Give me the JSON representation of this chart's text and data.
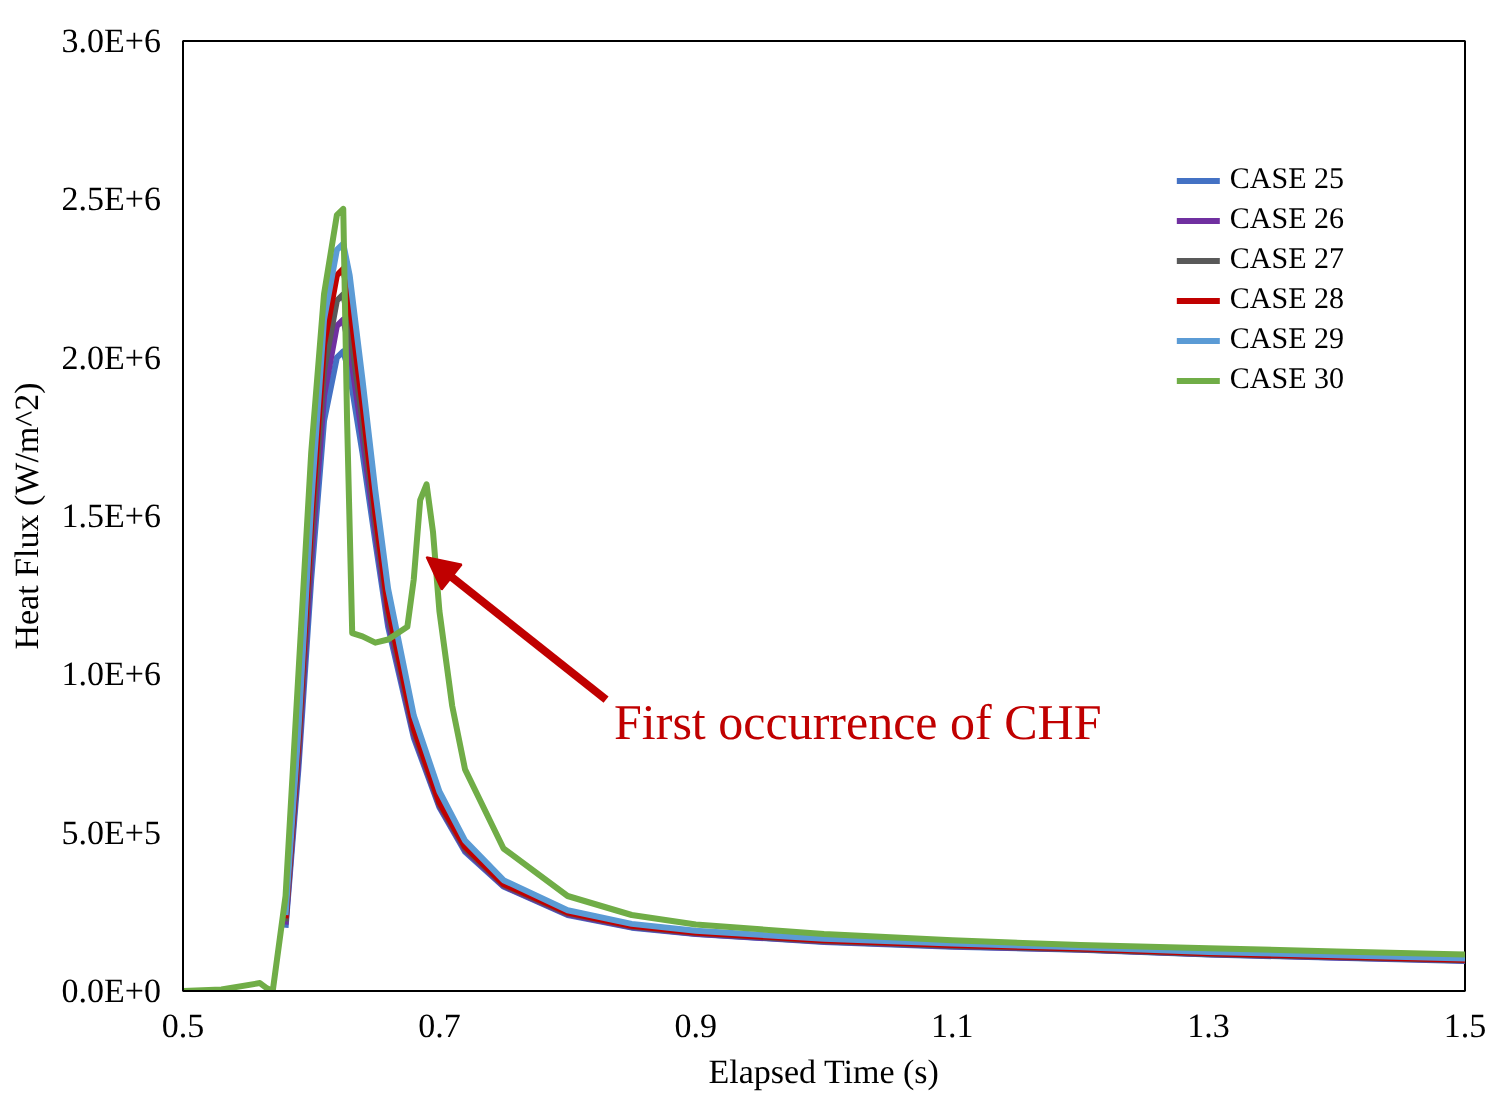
{
  "chart_data": {
    "type": "line",
    "xlabel": "Elapsed Time (s)",
    "ylabel": "Heat Flux (W/m^2)",
    "xlim": [
      0.5,
      1.5
    ],
    "xticks": [
      0.5,
      0.7,
      0.9,
      1.1,
      1.3,
      1.5
    ],
    "ylim": [
      0,
      3000000
    ],
    "yticks": [
      {
        "value": 0,
        "label": "0.0E+0"
      },
      {
        "value": 500000,
        "label": "5.0E+5"
      },
      {
        "value": 1000000,
        "label": "1.0E+6"
      },
      {
        "value": 1500000,
        "label": "1.5E+6"
      },
      {
        "value": 2000000,
        "label": "2.0E+6"
      },
      {
        "value": 2500000,
        "label": "2.5E+6"
      },
      {
        "value": 3000000,
        "label": "3.0E+6"
      }
    ],
    "grid": false,
    "legend": "top right",
    "marker": "none",
    "line_style": "solid",
    "series": [
      {
        "name": "CASE 25",
        "color": "#4472c4",
        "x": [
          0.58,
          0.59,
          0.6,
          0.61,
          0.62,
          0.625,
          0.63,
          0.64,
          0.65,
          0.66,
          0.68,
          0.7,
          0.72,
          0.75,
          0.8,
          0.85,
          0.9,
          1.0,
          1.1,
          1.2,
          1.3,
          1.4,
          1.5
        ],
        "values": [
          200000,
          700000,
          1300000,
          1800000,
          2000000,
          2020000,
          1950000,
          1700000,
          1420000,
          1150000,
          800000,
          580000,
          440000,
          330000,
          240000,
          200000,
          180000,
          155000,
          140000,
          130000,
          115000,
          105000,
          95000
        ]
      },
      {
        "name": "CASE 26",
        "color": "#7030a0",
        "x": [
          0.58,
          0.59,
          0.6,
          0.61,
          0.62,
          0.625,
          0.63,
          0.64,
          0.65,
          0.66,
          0.68,
          0.7,
          0.72,
          0.75,
          0.8,
          0.85,
          0.9,
          1.0,
          1.1,
          1.2,
          1.3,
          1.4,
          1.5
        ],
        "values": [
          210000,
          730000,
          1360000,
          1880000,
          2100000,
          2120000,
          2030000,
          1750000,
          1450000,
          1170000,
          810000,
          585000,
          445000,
          332000,
          242000,
          202000,
          181000,
          156000,
          141000,
          131000,
          116000,
          106000,
          96000
        ]
      },
      {
        "name": "CASE 27",
        "color": "#595959",
        "x": [
          0.58,
          0.59,
          0.6,
          0.61,
          0.62,
          0.625,
          0.63,
          0.64,
          0.65,
          0.66,
          0.68,
          0.7,
          0.72,
          0.75,
          0.8,
          0.85,
          0.9,
          1.0,
          1.1,
          1.2,
          1.3,
          1.4,
          1.5
        ],
        "values": [
          220000,
          760000,
          1420000,
          1960000,
          2180000,
          2200000,
          2100000,
          1800000,
          1480000,
          1190000,
          820000,
          590000,
          450000,
          335000,
          245000,
          204000,
          183000,
          158000,
          143000,
          132000,
          117000,
          107000,
          97000
        ]
      },
      {
        "name": "CASE 28",
        "color": "#c00000",
        "x": [
          0.58,
          0.59,
          0.6,
          0.61,
          0.62,
          0.625,
          0.63,
          0.64,
          0.65,
          0.66,
          0.68,
          0.7,
          0.72,
          0.75,
          0.8,
          0.85,
          0.9,
          1.0,
          1.1,
          1.2,
          1.3,
          1.4,
          1.5
        ],
        "values": [
          230000,
          790000,
          1480000,
          2040000,
          2260000,
          2280000,
          2170000,
          1850000,
          1510000,
          1210000,
          830000,
          595000,
          455000,
          338000,
          248000,
          206000,
          185000,
          160000,
          145000,
          134000,
          119000,
          109000,
          99000
        ]
      },
      {
        "name": "CASE 29",
        "color": "#5b9bd5",
        "x": [
          0.58,
          0.59,
          0.6,
          0.61,
          0.62,
          0.625,
          0.63,
          0.64,
          0.65,
          0.66,
          0.68,
          0.7,
          0.72,
          0.75,
          0.8,
          0.85,
          0.9,
          1.0,
          1.1,
          1.2,
          1.3,
          1.4,
          1.5
        ],
        "values": [
          240000,
          820000,
          1540000,
          2120000,
          2340000,
          2360000,
          2260000,
          1930000,
          1580000,
          1270000,
          870000,
          630000,
          475000,
          350000,
          255000,
          212000,
          190000,
          165000,
          150000,
          138000,
          123000,
          113000,
          103000
        ]
      },
      {
        "name": "CASE 30",
        "color": "#70ad47",
        "x": [
          0.5,
          0.53,
          0.56,
          0.565,
          0.57,
          0.58,
          0.59,
          0.6,
          0.61,
          0.62,
          0.625,
          0.628,
          0.632,
          0.64,
          0.65,
          0.66,
          0.675,
          0.68,
          0.685,
          0.69,
          0.695,
          0.7,
          0.71,
          0.72,
          0.75,
          0.8,
          0.85,
          0.9,
          1.0,
          1.1,
          1.2,
          1.3,
          1.4,
          1.5
        ],
        "values": [
          0,
          5000,
          25000,
          10000,
          0,
          300000,
          1000000,
          1700000,
          2200000,
          2450000,
          2470000,
          1800000,
          1130000,
          1120000,
          1100000,
          1110000,
          1150000,
          1300000,
          1550000,
          1600000,
          1450000,
          1200000,
          900000,
          700000,
          450000,
          300000,
          240000,
          210000,
          180000,
          160000,
          145000,
          135000,
          125000,
          115000
        ]
      }
    ],
    "annotations": [
      {
        "text": "First occurrence of CHF",
        "x": 0.69,
        "y": 1370000
      }
    ]
  }
}
